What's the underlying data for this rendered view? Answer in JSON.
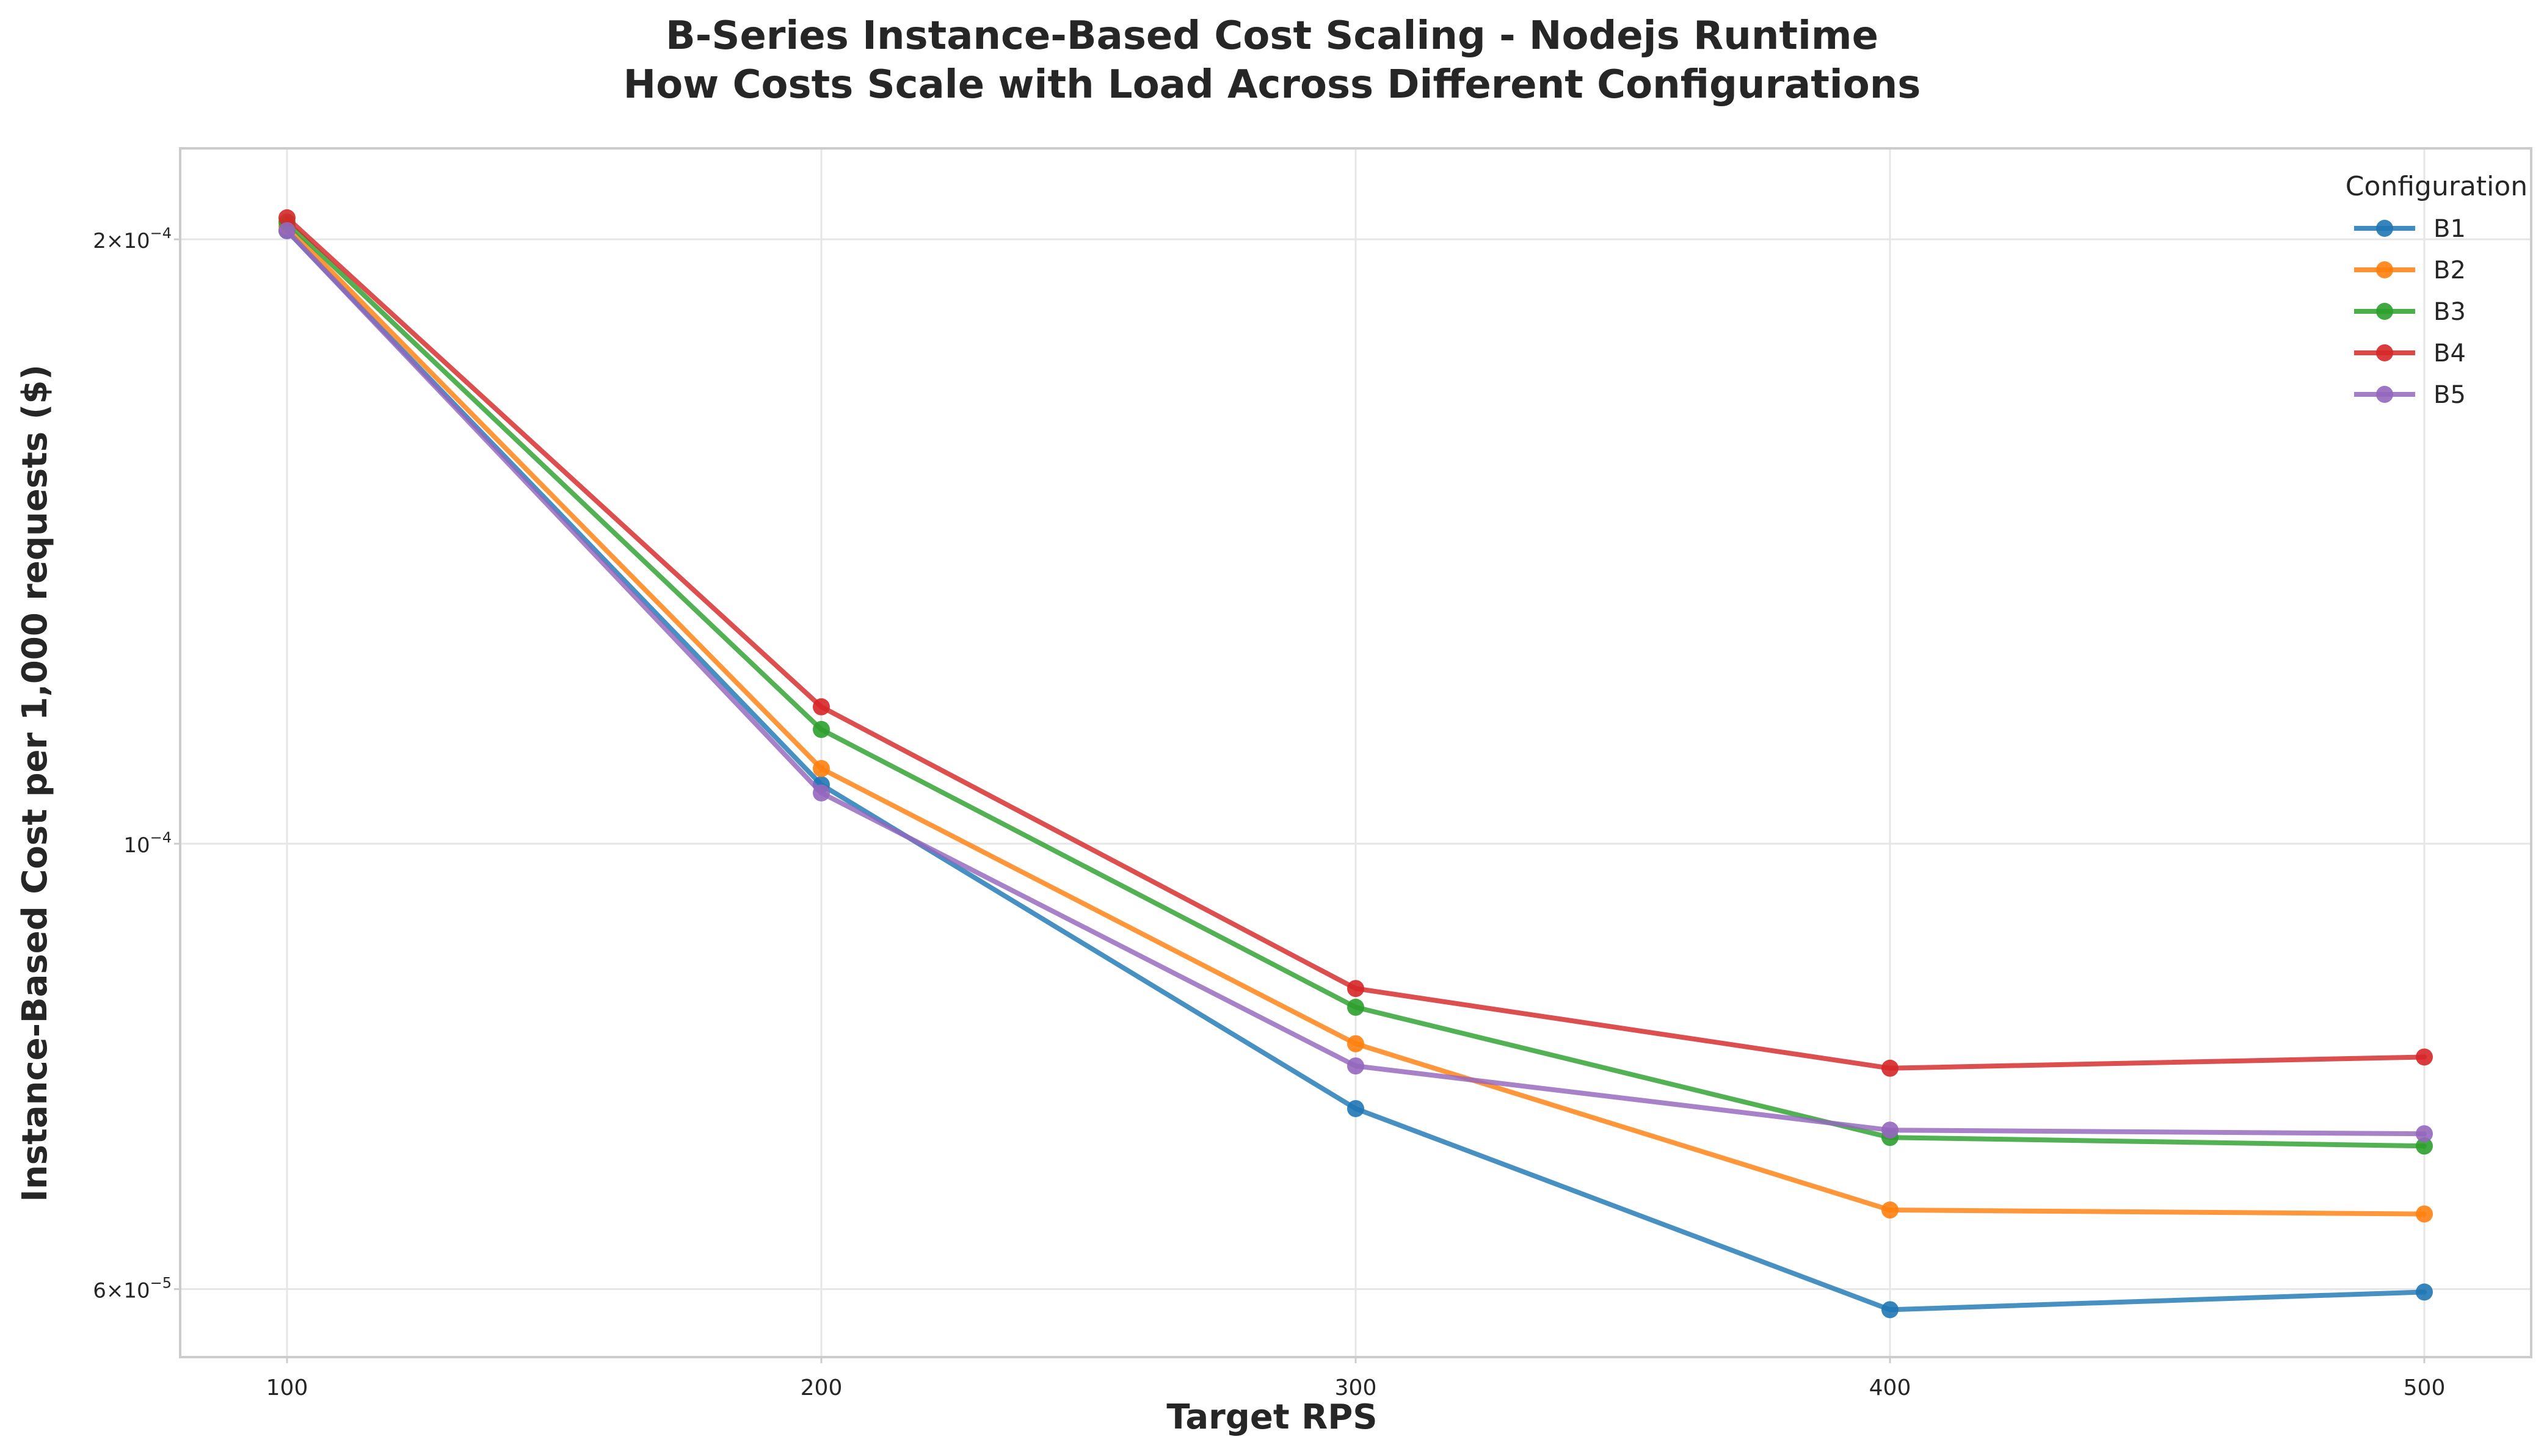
{
  "chart_data": {
    "type": "line",
    "title": "B-Series Instance-Based Cost Scaling - Nodejs Runtime",
    "subtitle": "How Costs Scale with Load Across Different Configurations",
    "xlabel": "Target RPS",
    "ylabel": "Instance-Based Cost per 1,000 requests ($)",
    "y_scale": "log",
    "x": [
      100,
      200,
      300,
      400,
      500
    ],
    "x_ticks": [
      "100",
      "200",
      "300",
      "400",
      "500"
    ],
    "xlim": [
      80,
      520
    ],
    "ylim": [
      5.55e-05,
      0.000222
    ],
    "y_ticks": [
      {
        "value": 0.0002,
        "base": "2×10",
        "exp": "−4"
      },
      {
        "value": 0.0001,
        "base": "10",
        "exp": "−4"
      },
      {
        "value": 6e-05,
        "base": "6×10",
        "exp": "−5"
      }
    ],
    "grid": true,
    "legend": {
      "title": "Configuration",
      "placement": "top-right"
    },
    "series": [
      {
        "name": "B1",
        "color": "#1f77b4",
        "values": [
          0.000202,
          0.000107,
          7.38e-05,
          5.86e-05,
          5.98e-05
        ]
      },
      {
        "name": "B2",
        "color": "#ff7f0e",
        "values": [
          0.000203,
          0.000109,
          7.95e-05,
          6.57e-05,
          6.54e-05
        ]
      },
      {
        "name": "B3",
        "color": "#2ca02c",
        "values": [
          0.000204,
          0.000114,
          8.29e-05,
          7.14e-05,
          7.07e-05
        ]
      },
      {
        "name": "B4",
        "color": "#d62728",
        "values": [
          0.000205,
          0.000117,
          8.47e-05,
          7.73e-05,
          7.83e-05
        ]
      },
      {
        "name": "B5",
        "color": "#9467bd",
        "values": [
          0.000202,
          0.000106,
          7.75e-05,
          7.2e-05,
          7.17e-05
        ]
      }
    ]
  }
}
